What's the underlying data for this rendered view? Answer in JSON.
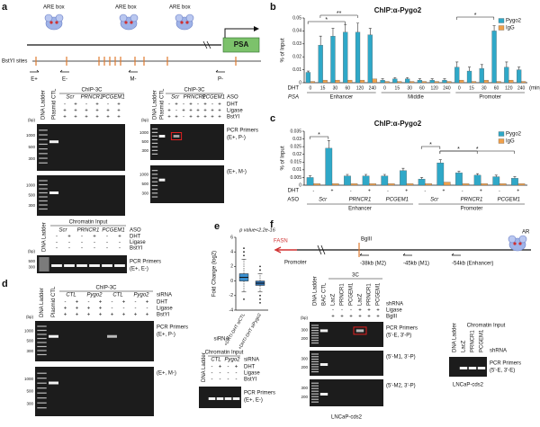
{
  "panel_letters": [
    "a",
    "b",
    "c",
    "d",
    "e",
    "f"
  ],
  "panel_a": {
    "are_boxes": [
      "ARE box",
      "ARE box",
      "ARE box"
    ],
    "gene": "PSA",
    "sites_label": "BstYI sites",
    "primers": [
      "E+",
      "E-",
      "M-",
      "P-"
    ],
    "gels": [
      {
        "header": "ChIP-3C",
        "lanes": [
          "DNA Ladder",
          "Plasmid CTL"
        ],
        "groups": [
          "Scr",
          "PRNCR1",
          "PCGEM1"
        ],
        "rows": [
          {
            "signs": [
              "-",
              "+",
              "-",
              "+",
              "-",
              "+"
            ]
          },
          {
            "signs": [
              "+",
              "+",
              "+",
              "+",
              "+",
              "+"
            ]
          },
          {
            "signs": [
              "+",
              "+",
              "+",
              "+",
              "+",
              "+"
            ]
          }
        ],
        "bp": "(bp)",
        "images": [
          {
            "ladder": [
              "1000",
              "500",
              "300"
            ]
          },
          {
            "ladder": [
              "1000",
              "500",
              "300"
            ]
          }
        ]
      },
      {
        "header": "ChIP-3C",
        "lanes": [
          "DNA Ladder",
          "Plasmid CTL"
        ],
        "group_label": "ASO",
        "groups": [
          "Scr",
          "PRNCR1",
          "PCGEM1"
        ],
        "rows": [
          {
            "label": "DHT",
            "signs": [
              "-",
              "+",
              "-",
              "+",
              "-",
              "+",
              "-",
              "+"
            ]
          },
          {
            "label": "Ligase",
            "signs": [
              "+",
              "-",
              "+",
              "+",
              "+",
              "+",
              "+",
              "+"
            ]
          },
          {
            "label": "BstYI",
            "signs": [
              "+",
              "+",
              "-",
              "+",
              "+",
              "+",
              "+",
              "+"
            ]
          }
        ],
        "bp": "(bp)",
        "images": [
          {
            "ladder": [
              "1000",
              "500",
              "300"
            ],
            "labels": [
              "PCR Primers",
              "(E+, P-)"
            ]
          },
          {
            "ladder": [
              "1000",
              "500",
              "300"
            ],
            "labels": [
              "(E+, M-)"
            ]
          }
        ]
      },
      {
        "header": "Chromatin Input",
        "lanes": [
          "DNA Ladder"
        ],
        "group_label": "ASO",
        "groups": [
          "Scr",
          "PRNCR1",
          "PCGEM1"
        ],
        "rows": [
          {
            "label": "DHT",
            "signs": [
              "-",
              "+",
              "-",
              "+",
              "-",
              "+"
            ]
          },
          {
            "label": "Ligase",
            "signs": [
              "-",
              "-",
              "-",
              "-",
              "-",
              "-"
            ]
          },
          {
            "label": "BstYI",
            "signs": [
              "-",
              "-",
              "-",
              "-",
              "-",
              "-"
            ]
          }
        ],
        "bp": "(bp)",
        "images": [
          {
            "ladder": [
              "500",
              "300"
            ],
            "labels": [
              "PCR Primers",
              "(E+, E-)"
            ]
          }
        ]
      }
    ]
  },
  "panel_d": {
    "gels": [
      {
        "header": "ChIP-3C",
        "lanes": [
          "DNA Ladder",
          "Plasmid CTL"
        ],
        "group_label": "siRNA",
        "groups": [
          "CTL",
          "Pygo2",
          "CTL",
          "Pygo2"
        ],
        "rows": [
          {
            "label": "DHT",
            "signs": [
              "-",
              "+",
              "-",
              "+",
              "-",
              "+",
              "-",
              "+"
            ]
          },
          {
            "label": "Ligase",
            "signs": [
              "+",
              "+",
              "+",
              "+",
              "-",
              "-",
              "-",
              "-"
            ]
          },
          {
            "label": "BstYI",
            "signs": [
              "+",
              "+",
              "+",
              "+",
              "+",
              "+",
              "+",
              "+"
            ]
          }
        ],
        "bp": "(bp)",
        "images": [
          {
            "ladder": [
              "1000",
              "500",
              "300"
            ],
            "labels": [
              "PCR Primers",
              "(E+, P-)"
            ]
          },
          {
            "ladder": [
              "1000",
              "500",
              "300"
            ],
            "labels": [
              "(E+, M-)"
            ]
          }
        ]
      },
      {
        "header": "Chromatin Input",
        "lanes": [
          "DNA Ladder"
        ],
        "group_label": "siRNA",
        "groups": [
          "CTL",
          "Pygo2"
        ],
        "rows": [
          {
            "label": "DHT",
            "signs": [
              "-",
              "+",
              "-",
              "+"
            ]
          },
          {
            "label": "Ligase",
            "signs": [
              "-",
              "-",
              "-",
              "-"
            ]
          },
          {
            "label": "BstYI",
            "signs": [
              "-",
              "-",
              "-",
              "-"
            ]
          }
        ],
        "images": [
          {
            "labels": [
              "PCR Primers",
              "(E+, E-)"
            ]
          }
        ]
      }
    ]
  },
  "panel_f": {
    "genes": [
      "FASN",
      "AR"
    ],
    "promoter": "Promoter",
    "site": "BglII",
    "positions": [
      "-38kb (M2)",
      "-45kb (M1)",
      "-54kb (Enhancer)"
    ],
    "gels": [
      {
        "header": "3C",
        "lanes": [
          "DNA Ladder",
          "BAC CTL",
          "LacZ",
          "PRNCR1",
          "PCGEM1",
          "LacZ",
          "PRNCR1",
          "PCGEM1"
        ],
        "group_label": "shRNA",
        "groups": [],
        "rows": [
          {
            "label": "Ligase",
            "signs": [
              "-",
              "-",
              "-",
              "+",
              "+",
              "+"
            ]
          },
          {
            "label": "BglII",
            "signs": [
              "+",
              "+",
              "+",
              "+",
              "+",
              "+"
            ]
          }
        ],
        "bp": "(bp)",
        "images": [
          {
            "ladder": [
              "300",
              "200"
            ],
            "labels": [
              "PCR Primers",
              "(5'-E, 3'-P)"
            ]
          },
          {
            "ladder": [
              "300",
              "200"
            ],
            "labels": [
              "(5'-M1, 3'-P)"
            ]
          },
          {
            "ladder": [
              "300",
              "200"
            ],
            "labels": [
              "(5'-M2, 3'-P)"
            ]
          }
        ],
        "caption": "LNCaP-cds2"
      },
      {
        "header": "Chromatin Input",
        "lanes": [
          "DNA Ladder",
          "LacZ",
          "PRNCR1",
          "PCGEM1"
        ],
        "group_label": "shRNA",
        "groups": [],
        "rows": [],
        "images": [
          {
            "labels": [
              "PCR Primers",
              "(5'-E, 3'-E)"
            ]
          }
        ],
        "caption": "LNCaP-cds2"
      }
    ]
  },
  "chart_data": [
    {
      "type": "bar",
      "title": "ChIP:α-Pygo2",
      "y_label": "% of Input",
      "x_label": "DHT",
      "group_label": "PSA",
      "unit": "(min)",
      "categories": [
        "0",
        "15",
        "30",
        "60",
        "120",
        "240",
        "0",
        "15",
        "30",
        "60",
        "120",
        "240",
        "0",
        "15",
        "30",
        "60",
        "120",
        "240"
      ],
      "groups": [
        "Enhancer",
        "Middle",
        "Promoter"
      ],
      "series": [
        {
          "name": "Pygo2",
          "color": "#2fa8c8",
          "values": [
            0.008,
            0.029,
            0.036,
            0.039,
            0.039,
            0.037,
            0.002,
            0.003,
            0.003,
            0.002,
            0.002,
            0.002,
            0.012,
            0.009,
            0.011,
            0.04,
            0.012,
            0.01
          ],
          "errors": [
            0.001,
            0.007,
            0.006,
            0.006,
            0.007,
            0.005,
            0.001,
            0.001,
            0.001,
            0.001,
            0.001,
            0.001,
            0.004,
            0.003,
            0.003,
            0.004,
            0.004,
            0.002
          ]
        },
        {
          "name": "IgG",
          "color": "#f0a04a",
          "values": [
            0.001,
            0.002,
            0.002,
            0.002,
            0.002,
            0.003,
            0.001,
            0.001,
            0.001,
            0.001,
            0.001,
            0.001,
            0.002,
            0.001,
            0.002,
            0.001,
            0.002,
            0.001
          ]
        }
      ],
      "ylim": [
        0,
        0.05
      ],
      "yticks": [
        0,
        0.01,
        0.02,
        0.03,
        0.04,
        0.05
      ],
      "legend": "upper right",
      "annotations": [
        "*",
        "**",
        "*"
      ]
    },
    {
      "type": "bar",
      "title": "ChIP:α-Pygo2",
      "y_label": "% of Input",
      "x_label": "DHT",
      "aso_label": "ASO",
      "categories": [
        "-",
        "+",
        "-",
        "+",
        "-",
        "+",
        "-",
        "+",
        "-",
        "+",
        "-",
        "+"
      ],
      "aso": [
        "Scr",
        "PRNCR1",
        "PCGEM1",
        "Scr",
        "PRNCR1",
        "PCGEM1"
      ],
      "groups": [
        "Enhancer",
        "Promoter"
      ],
      "series": [
        {
          "name": "Pygo2",
          "color": "#2fa8c8",
          "values": [
            0.005,
            0.024,
            0.006,
            0.006,
            0.006,
            0.0095,
            0.004,
            0.0145,
            0.008,
            0.0065,
            0.0055,
            0.0045
          ],
          "errors": [
            0.001,
            0.005,
            0.001,
            0.001,
            0.001,
            0.0015,
            0.001,
            0.002,
            0.001,
            0.001,
            0.001,
            0.001
          ]
        },
        {
          "name": "IgG",
          "color": "#f0a04a",
          "values": [
            0.001,
            0.001,
            0.001,
            0.001,
            0.001,
            0.001,
            0.001,
            0.002,
            0.001,
            0.001,
            0.001,
            0.001
          ]
        }
      ],
      "ylim": [
        0,
        0.035
      ],
      "yticks": [
        0,
        0.005,
        0.01,
        0.015,
        0.02,
        0.025,
        0.03,
        0.035
      ],
      "legend": "upper right",
      "annotations": [
        "*",
        "*",
        "*",
        "*"
      ]
    },
    {
      "type": "box",
      "annotation": "p value<2.2e-16",
      "y_label": "Fold Change (log2)",
      "x_label": "siRNA",
      "categories": [
        "+DHT/-DHT siCTL",
        "+DHT/-DHT siPygo2"
      ],
      "colors": [
        "#3a8fd0",
        "#2e6fb0"
      ],
      "stats": [
        {
          "min": -1.5,
          "q1": 0,
          "median": 0.5,
          "q3": 1,
          "max": 3
        },
        {
          "min": -1.5,
          "q1": -0.6,
          "median": -0.3,
          "q3": 0,
          "max": 1
        }
      ],
      "outliers": [
        [
          3.5,
          4,
          4.5,
          -2.5
        ],
        [
          1.5,
          2,
          -2,
          -2.5,
          -3
        ]
      ],
      "ylim": [
        -4,
        6
      ],
      "yticks": [
        -4,
        -2,
        0,
        2,
        4,
        6
      ]
    }
  ]
}
